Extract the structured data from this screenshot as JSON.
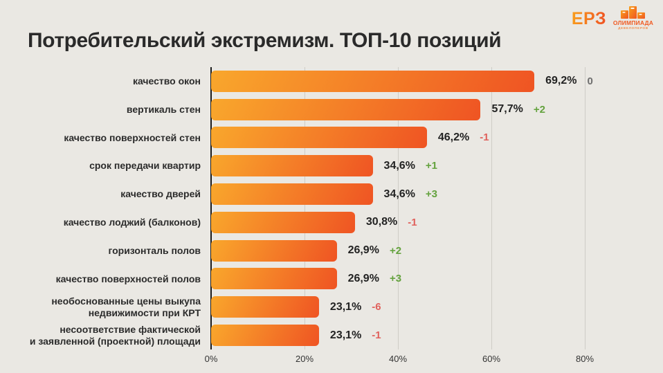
{
  "header": {
    "title": "Потребительский экстремизм. ТОП-10 позиций"
  },
  "logos": {
    "erz_label": "ЕРЗ",
    "olympiad_line1": "ОЛИМПИАДА",
    "olympiad_line2": "ДЕВЕЛОПЕРОВ"
  },
  "chart_data": {
    "type": "bar",
    "orientation": "horizontal",
    "title": "Потребительский экстремизм. ТОП-10 позиций",
    "categories": [
      "качество окон",
      "вертикаль стен",
      "качество  поверхностей  стен",
      "срок передачи квартир",
      "качество дверей",
      "качество лоджий (балконов)",
      "горизонталь полов",
      "качество  поверхностей  полов",
      "необоснованные цены выкупа\nнедвижимости при КРТ",
      "несоответствие фактической\nи заявленной (проектной) площади"
    ],
    "values": [
      69.2,
      57.7,
      46.2,
      34.6,
      34.6,
      30.8,
      26.9,
      26.9,
      23.1,
      23.1
    ],
    "value_labels": [
      "69,2%",
      "57,7%",
      "46,2%",
      "34,6%",
      "34,6%",
      "30,8%",
      "26,9%",
      "26,9%",
      "23,1%",
      "23,1%"
    ],
    "changes": [
      "0",
      "+2",
      "-1",
      "+1",
      "+3",
      "-1",
      "+2",
      "+3",
      "-6",
      "-1"
    ],
    "change_direction": [
      "neutral",
      "up",
      "down",
      "up",
      "up",
      "down",
      "up",
      "up",
      "down",
      "down"
    ],
    "xticks": [
      "0%",
      "20%",
      "40%",
      "60%",
      "80%"
    ],
    "xlim": [
      0,
      96
    ],
    "grid": true,
    "legend": false
  },
  "colors": {
    "background": "#EAE8E3",
    "bar_gradient_start": "#F9A72C",
    "bar_gradient_end": "#EF5423",
    "positive": "#64A23E",
    "negative": "#E0615C",
    "neutral": "#6E6E6E",
    "gridline": "#CECCC6",
    "axis": "#1B1B1B",
    "title_text": "#2A2A2A",
    "erz_orange": "#F05A22"
  }
}
